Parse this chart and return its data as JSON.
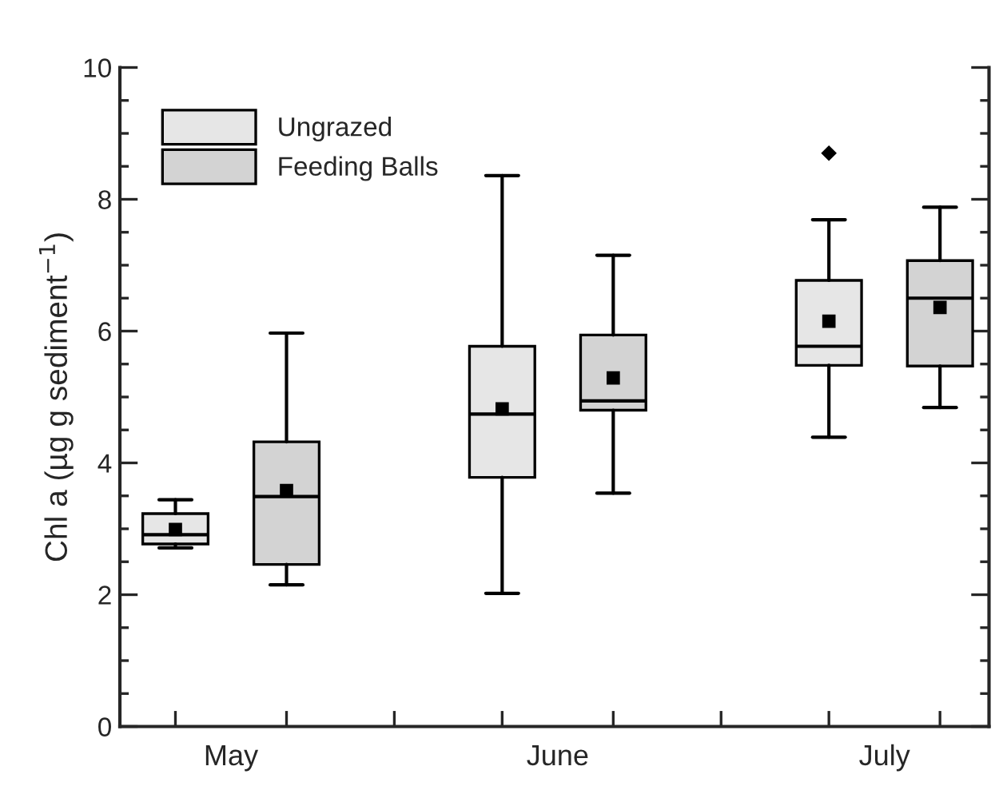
{
  "chart_data": {
    "type": "box",
    "ylabel": "Chl a (µg g sediment$^{−1}$)",
    "categories": [
      "May",
      "June",
      "July"
    ],
    "ylim": [
      0,
      10
    ],
    "yticks": [
      0,
      {
        "value": 0.5,
        "label": null
      },
      {
        "value": 1,
        "label": null
      },
      {
        "value": 1.5,
        "label": null
      },
      2,
      {
        "value": 2.5,
        "label": null
      },
      {
        "value": 3,
        "label": null
      },
      {
        "value": 3.5,
        "label": null
      },
      4,
      {
        "value": 4.5,
        "label": null
      },
      {
        "value": 5,
        "label": null
      },
      {
        "value": 5.5,
        "label": null
      },
      6,
      {
        "value": 6.5,
        "label": null
      },
      {
        "value": 7,
        "label": null
      },
      {
        "value": 7.5,
        "label": null
      },
      8,
      {
        "value": 8.5,
        "label": null
      },
      {
        "value": 9,
        "label": null
      },
      {
        "value": 9.5,
        "label": null
      },
      10
    ],
    "legend": "top left",
    "grid": false,
    "marker": "square",
    "series": [
      {
        "name": "Ungrazed",
        "color": "#e6e6e6",
        "boxes": [
          {
            "low": 2.71,
            "q1": 2.77,
            "median": 2.91,
            "q3": 3.23,
            "high": 3.44,
            "mean": 2.99
          },
          {
            "low": 2.02,
            "q1": 3.78,
            "median": 4.74,
            "q3": 5.77,
            "high": 8.36,
            "mean": 4.82
          },
          {
            "low": 4.39,
            "q1": 5.48,
            "median": 5.77,
            "q3": 6.77,
            "high": 7.69,
            "mean": 6.15,
            "outliers": [
              8.7
            ]
          }
        ]
      },
      {
        "name": "Feeding Balls",
        "color": "#d3d3d3",
        "boxes": [
          {
            "low": 2.15,
            "q1": 2.46,
            "median": 3.49,
            "q3": 4.32,
            "high": 5.97,
            "mean": 3.58
          },
          {
            "low": 3.54,
            "q1": 4.8,
            "median": 4.94,
            "q3": 5.94,
            "high": 7.15,
            "mean": 5.29
          },
          {
            "low": 4.84,
            "q1": 5.47,
            "median": 6.5,
            "q3": 7.07,
            "high": 7.88,
            "mean": 6.36
          }
        ]
      }
    ]
  }
}
